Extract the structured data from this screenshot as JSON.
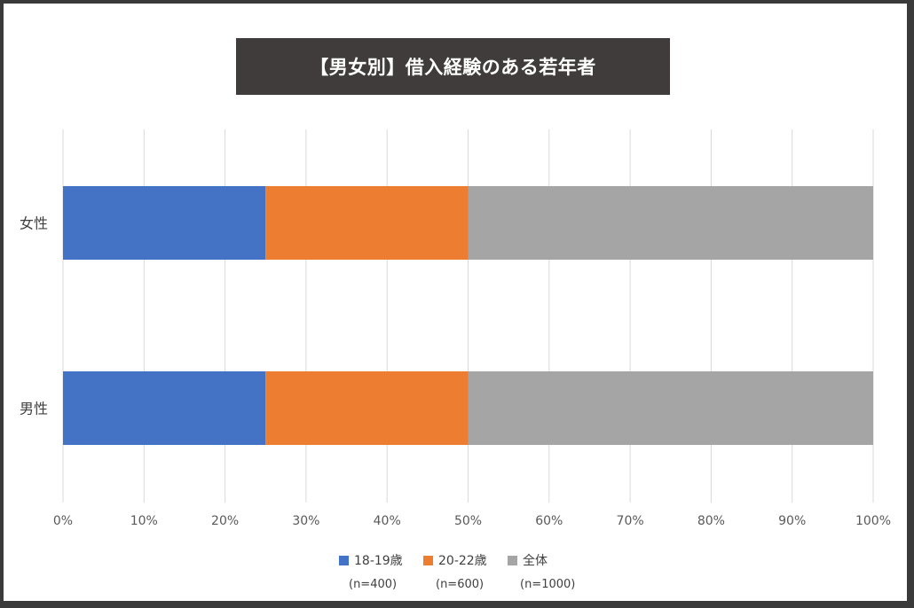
{
  "chart_data": {
    "type": "bar",
    "orientation": "horizontal",
    "stacked": true,
    "title": "【男女別】借入経験のある若年者",
    "categories": [
      "女性",
      "男性"
    ],
    "series": [
      {
        "name": "18-19歳",
        "note": "(n=400)",
        "color": "#4472c4",
        "values": [
          25,
          25
        ]
      },
      {
        "name": "20-22歳",
        "note": "(n=600)",
        "color": "#ed7d31",
        "values": [
          25,
          25
        ]
      },
      {
        "name": "全体",
        "note": "(n=1000)",
        "color": "#a5a5a5",
        "values": [
          50,
          50
        ]
      }
    ],
    "xlim": [
      0,
      100
    ],
    "xticks": [
      "0%",
      "10%",
      "20%",
      "30%",
      "40%",
      "50%",
      "60%",
      "70%",
      "80%",
      "90%",
      "100%"
    ],
    "grid": true,
    "legend_position": "bottom"
  }
}
